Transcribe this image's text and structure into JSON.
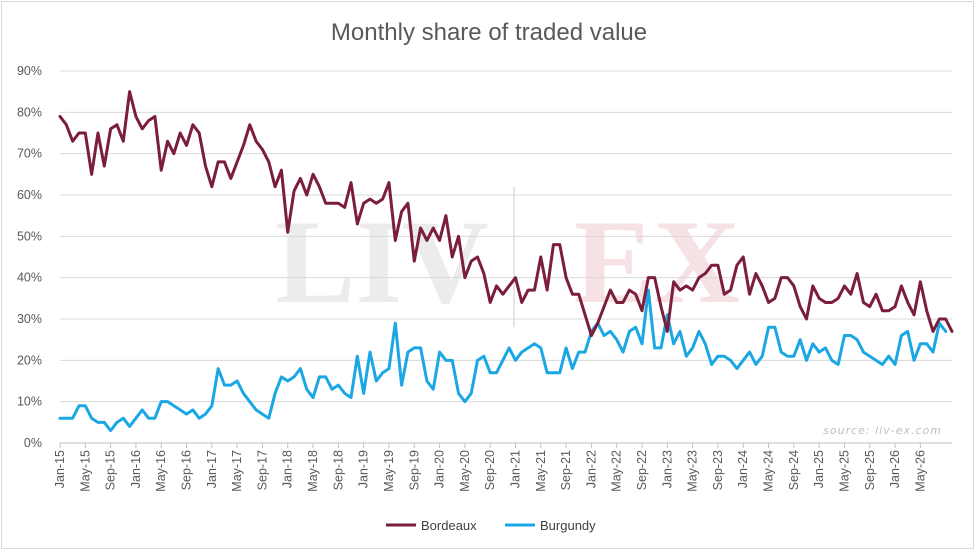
{
  "chart_data": {
    "type": "line",
    "title": "Monthly share of traded value",
    "source": "source: liv-ex.com",
    "watermark": {
      "left": "LIV",
      "right": "EX",
      "left_color": "#ececec",
      "right_color": "#f6e1e5"
    },
    "ylim": [
      0,
      90
    ],
    "y_ticks": [
      0,
      10,
      20,
      30,
      40,
      50,
      60,
      70,
      80,
      90
    ],
    "y_tick_labels": [
      "0%",
      "10%",
      "20%",
      "30%",
      "40%",
      "50%",
      "60%",
      "70%",
      "80%",
      "90%"
    ],
    "x_start": "Jan-15",
    "x_tick_labels": [
      "Jan-15",
      "May-15",
      "Sep-15",
      "Jan-16",
      "May-16",
      "Sep-16",
      "Jan-17",
      "May-17",
      "Sep-17",
      "Jan-18",
      "May-18",
      "Sep-18",
      "Jan-19",
      "May-19",
      "Sep-19",
      "Jan-20",
      "May-20",
      "Sep-20",
      "Jan-21",
      "May-21",
      "Sep-21",
      "Jan-22",
      "May-22",
      "Sep-22",
      "Jan-23",
      "May-23",
      "Sep-23",
      "Jan-24",
      "May-24",
      "Sep-24",
      "Jan-25",
      "May-25",
      "Sep-25",
      "Jan-26",
      "May-26"
    ],
    "grid": true,
    "legend_position": "bottom",
    "series": [
      {
        "name": "Bordeaux",
        "color": "#7b1e3c",
        "values": [
          79,
          77,
          73,
          75,
          75,
          65,
          75,
          67,
          76,
          77,
          73,
          85,
          79,
          76,
          78,
          79,
          66,
          73,
          70,
          75,
          72,
          77,
          75,
          67,
          62,
          68,
          68,
          64,
          68,
          72,
          77,
          73,
          71,
          68,
          62,
          66,
          51,
          61,
          64,
          60,
          65,
          62,
          58,
          58,
          58,
          57,
          63,
          53,
          58,
          59,
          58,
          59,
          63,
          49,
          56,
          58,
          44,
          52,
          49,
          52,
          49,
          55,
          45,
          50,
          40,
          44,
          45,
          41,
          34,
          38,
          36,
          38,
          40,
          34,
          37,
          37,
          45,
          37,
          48,
          48,
          40,
          36,
          36,
          31,
          26,
          29,
          33,
          37,
          34,
          34,
          37,
          36,
          32,
          40,
          40,
          33,
          27,
          39,
          37,
          38,
          37,
          40,
          41,
          43,
          43,
          36,
          37,
          43,
          45,
          36,
          41,
          38,
          34,
          35,
          40,
          40,
          38,
          33,
          30,
          38,
          35,
          34,
          34,
          35,
          38,
          36,
          41,
          34,
          33,
          36,
          32,
          32,
          33,
          38,
          34,
          31,
          39,
          32,
          27,
          30,
          30,
          27
        ]
      },
      {
        "name": "Burgundy",
        "color": "#1aa7e3",
        "values": [
          6,
          6,
          6,
          9,
          9,
          6,
          5,
          5,
          3,
          5,
          6,
          4,
          6,
          8,
          6,
          6,
          10,
          10,
          9,
          8,
          7,
          8,
          6,
          7,
          9,
          18,
          14,
          14,
          15,
          12,
          10,
          8,
          7,
          6,
          12,
          16,
          15,
          16,
          18,
          13,
          11,
          16,
          16,
          13,
          14,
          12,
          11,
          21,
          12,
          22,
          15,
          17,
          18,
          29,
          14,
          22,
          23,
          23,
          15,
          13,
          22,
          20,
          20,
          12,
          10,
          12,
          20,
          21,
          17,
          17,
          20,
          23,
          20,
          22,
          23,
          24,
          23,
          17,
          17,
          17,
          23,
          18,
          22,
          22,
          27,
          29,
          26,
          27,
          25,
          22,
          27,
          28,
          24,
          37,
          23,
          23,
          31,
          24,
          27,
          21,
          23,
          27,
          24,
          19,
          21,
          21,
          20,
          18,
          20,
          22,
          19,
          21,
          28,
          28,
          22,
          21,
          21,
          25,
          20,
          24,
          22,
          23,
          20,
          19,
          26,
          26,
          25,
          22,
          21,
          20,
          19,
          21,
          19,
          26,
          27,
          20,
          24,
          24,
          22,
          29,
          27
        ]
      }
    ]
  }
}
